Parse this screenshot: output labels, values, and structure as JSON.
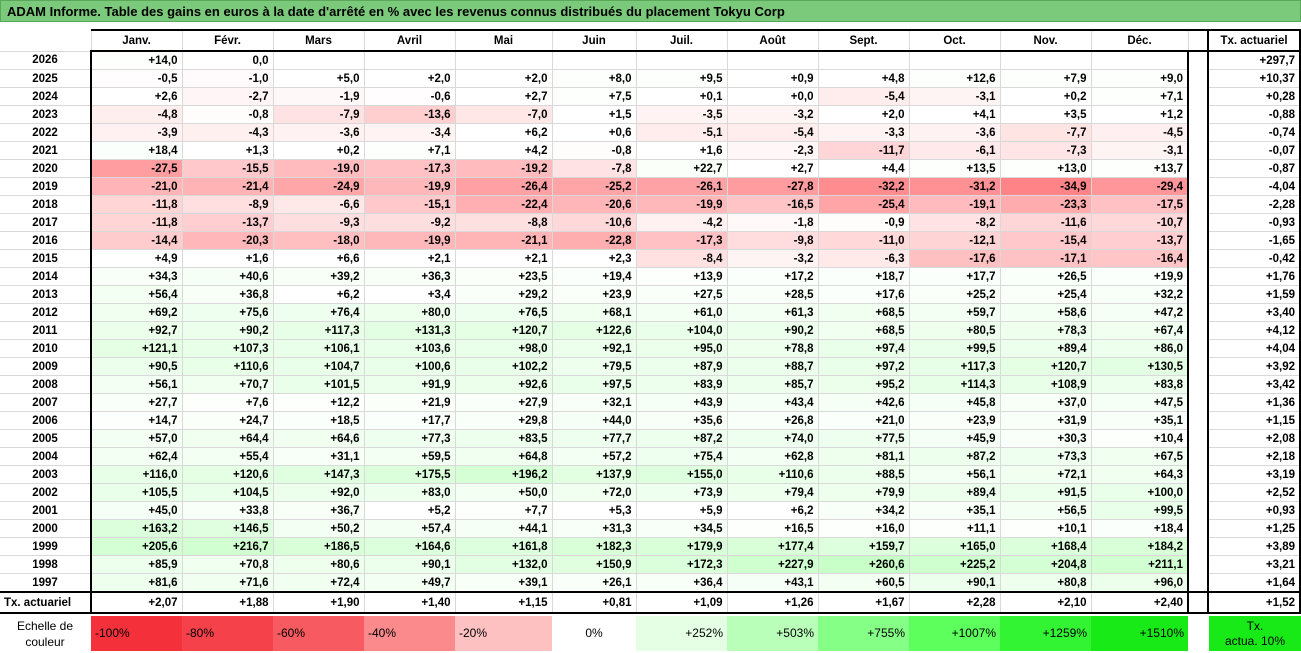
{
  "title": "ADAM Informe. Table des gains en euros à la date d'arrêté en % avec les revenus connus distribués du placement Tokyu Corp",
  "chart_data": {
    "type": "table",
    "columns": [
      "Janv.",
      "Févr.",
      "Mars",
      "Avril",
      "Mai",
      "Juin",
      "Juil.",
      "Août",
      "Sept.",
      "Oct.",
      "Nov.",
      "Déc."
    ],
    "tx_header": "Tx. actuariel",
    "rows": [
      {
        "year": "2026",
        "values": [
          "+14,0",
          "0,0",
          "",
          "",
          "",
          "",
          "",
          "",
          "",
          "",
          "",
          ""
        ],
        "tx": "+297,7"
      },
      {
        "year": "2025",
        "values": [
          "-0,5",
          "-1,0",
          "+5,0",
          "+2,0",
          "+2,0",
          "+8,0",
          "+9,5",
          "+0,9",
          "+4,8",
          "+12,6",
          "+7,9",
          "+9,0"
        ],
        "tx": "+10,37"
      },
      {
        "year": "2024",
        "values": [
          "+2,6",
          "-2,7",
          "-1,9",
          "-0,6",
          "+2,7",
          "+7,5",
          "+0,1",
          "+0,0",
          "-5,4",
          "-3,1",
          "+0,2",
          "+7,1"
        ],
        "tx": "+0,28"
      },
      {
        "year": "2023",
        "values": [
          "-4,8",
          "-0,8",
          "-7,9",
          "-13,6",
          "-7,0",
          "+1,5",
          "-3,5",
          "-3,2",
          "+2,0",
          "+4,1",
          "+3,5",
          "+1,2"
        ],
        "tx": "-0,88"
      },
      {
        "year": "2022",
        "values": [
          "-3,9",
          "-4,3",
          "-3,6",
          "-3,4",
          "+6,2",
          "+0,6",
          "-5,1",
          "-5,4",
          "-3,3",
          "-3,6",
          "-7,7",
          "-4,5"
        ],
        "tx": "-0,74"
      },
      {
        "year": "2021",
        "values": [
          "+18,4",
          "+1,3",
          "+0,2",
          "+7,1",
          "+4,2",
          "-0,8",
          "+1,6",
          "-2,3",
          "-11,7",
          "-6,1",
          "-7,3",
          "-3,1"
        ],
        "tx": "-0,07"
      },
      {
        "year": "2020",
        "values": [
          "-27,5",
          "-15,5",
          "-19,0",
          "-17,3",
          "-19,2",
          "-7,8",
          "+22,7",
          "+2,7",
          "+4,4",
          "+13,5",
          "+13,0",
          "+13,7"
        ],
        "tx": "-0,87"
      },
      {
        "year": "2019",
        "values": [
          "-21,0",
          "-21,4",
          "-24,9",
          "-19,9",
          "-26,4",
          "-25,2",
          "-26,1",
          "-27,8",
          "-32,2",
          "-31,2",
          "-34,9",
          "-29,4"
        ],
        "tx": "-4,04"
      },
      {
        "year": "2018",
        "values": [
          "-11,8",
          "-8,9",
          "-6,6",
          "-15,1",
          "-22,4",
          "-20,6",
          "-19,9",
          "-16,5",
          "-25,4",
          "-19,1",
          "-23,3",
          "-17,5"
        ],
        "tx": "-2,28"
      },
      {
        "year": "2017",
        "values": [
          "-11,8",
          "-13,7",
          "-9,3",
          "-9,2",
          "-8,8",
          "-10,6",
          "-4,2",
          "-1,8",
          "-0,9",
          "-8,2",
          "-11,6",
          "-10,7"
        ],
        "tx": "-0,93"
      },
      {
        "year": "2016",
        "values": [
          "-14,4",
          "-20,3",
          "-18,0",
          "-19,9",
          "-21,1",
          "-22,8",
          "-17,3",
          "-9,8",
          "-11,0",
          "-12,1",
          "-15,4",
          "-13,7"
        ],
        "tx": "-1,65"
      },
      {
        "year": "2015",
        "values": [
          "+4,9",
          "+1,6",
          "+6,6",
          "+2,1",
          "+2,1",
          "+2,3",
          "-8,4",
          "-3,2",
          "-6,3",
          "-17,6",
          "-17,1",
          "-16,4"
        ],
        "tx": "-0,42"
      },
      {
        "year": "2014",
        "values": [
          "+34,3",
          "+40,6",
          "+39,2",
          "+36,3",
          "+23,5",
          "+19,4",
          "+13,9",
          "+17,2",
          "+18,7",
          "+17,7",
          "+26,5",
          "+19,9"
        ],
        "tx": "+1,76"
      },
      {
        "year": "2013",
        "values": [
          "+56,4",
          "+36,8",
          "+6,2",
          "+3,4",
          "+29,2",
          "+23,9",
          "+27,5",
          "+28,5",
          "+17,6",
          "+25,2",
          "+25,4",
          "+32,2"
        ],
        "tx": "+1,59"
      },
      {
        "year": "2012",
        "values": [
          "+69,2",
          "+75,6",
          "+76,4",
          "+80,0",
          "+76,5",
          "+68,1",
          "+61,0",
          "+61,3",
          "+68,5",
          "+59,7",
          "+58,6",
          "+47,2"
        ],
        "tx": "+3,40"
      },
      {
        "year": "2011",
        "values": [
          "+92,7",
          "+90,2",
          "+117,3",
          "+131,3",
          "+120,7",
          "+122,6",
          "+104,0",
          "+90,2",
          "+68,5",
          "+80,5",
          "+78,3",
          "+67,4"
        ],
        "tx": "+4,12"
      },
      {
        "year": "2010",
        "values": [
          "+121,1",
          "+107,3",
          "+106,1",
          "+103,6",
          "+98,0",
          "+92,1",
          "+95,0",
          "+78,8",
          "+97,4",
          "+99,5",
          "+89,4",
          "+86,0"
        ],
        "tx": "+4,04"
      },
      {
        "year": "2009",
        "values": [
          "+90,5",
          "+110,6",
          "+104,7",
          "+100,6",
          "+102,2",
          "+79,5",
          "+87,9",
          "+88,7",
          "+97,2",
          "+117,3",
          "+120,7",
          "+130,5"
        ],
        "tx": "+3,92"
      },
      {
        "year": "2008",
        "values": [
          "+56,1",
          "+70,7",
          "+101,5",
          "+91,9",
          "+92,6",
          "+97,5",
          "+83,9",
          "+85,7",
          "+95,2",
          "+114,3",
          "+108,9",
          "+83,8"
        ],
        "tx": "+3,42"
      },
      {
        "year": "2007",
        "values": [
          "+27,7",
          "+7,6",
          "+12,2",
          "+21,9",
          "+27,9",
          "+32,1",
          "+43,9",
          "+43,4",
          "+42,6",
          "+45,8",
          "+37,0",
          "+47,5"
        ],
        "tx": "+1,36"
      },
      {
        "year": "2006",
        "values": [
          "+14,7",
          "+24,7",
          "+18,5",
          "+17,7",
          "+29,8",
          "+44,0",
          "+35,6",
          "+26,8",
          "+21,0",
          "+23,9",
          "+31,9",
          "+35,1"
        ],
        "tx": "+1,15"
      },
      {
        "year": "2005",
        "values": [
          "+57,0",
          "+64,4",
          "+64,6",
          "+77,3",
          "+83,5",
          "+77,7",
          "+87,2",
          "+74,0",
          "+77,5",
          "+45,9",
          "+30,3",
          "+10,4"
        ],
        "tx": "+2,08"
      },
      {
        "year": "2004",
        "values": [
          "+62,4",
          "+55,4",
          "+31,1",
          "+59,5",
          "+64,8",
          "+57,2",
          "+75,4",
          "+62,8",
          "+81,1",
          "+87,2",
          "+73,3",
          "+67,5"
        ],
        "tx": "+2,18"
      },
      {
        "year": "2003",
        "values": [
          "+116,0",
          "+120,6",
          "+147,3",
          "+175,5",
          "+196,2",
          "+137,9",
          "+155,0",
          "+110,6",
          "+88,5",
          "+56,1",
          "+72,1",
          "+64,3"
        ],
        "tx": "+3,19"
      },
      {
        "year": "2002",
        "values": [
          "+105,5",
          "+104,5",
          "+92,0",
          "+83,0",
          "+50,0",
          "+72,0",
          "+73,9",
          "+79,4",
          "+79,9",
          "+89,4",
          "+91,5",
          "+100,0"
        ],
        "tx": "+2,52"
      },
      {
        "year": "2001",
        "values": [
          "+45,0",
          "+33,8",
          "+36,7",
          "+5,2",
          "+7,7",
          "+5,3",
          "+5,9",
          "+6,2",
          "+34,2",
          "+35,1",
          "+56,5",
          "+99,5"
        ],
        "tx": "+0,93"
      },
      {
        "year": "2000",
        "values": [
          "+163,2",
          "+146,5",
          "+50,2",
          "+57,4",
          "+44,1",
          "+31,3",
          "+34,5",
          "+16,5",
          "+16,0",
          "+11,1",
          "+10,1",
          "+18,4"
        ],
        "tx": "+1,25"
      },
      {
        "year": "1999",
        "values": [
          "+205,6",
          "+216,7",
          "+186,5",
          "+164,6",
          "+161,8",
          "+182,3",
          "+179,9",
          "+177,4",
          "+159,7",
          "+165,0",
          "+168,4",
          "+184,2"
        ],
        "tx": "+3,89"
      },
      {
        "year": "1998",
        "values": [
          "+85,9",
          "+70,8",
          "+80,6",
          "+90,1",
          "+132,0",
          "+150,9",
          "+172,3",
          "+227,9",
          "+260,6",
          "+225,2",
          "+204,8",
          "+211,1"
        ],
        "tx": "+3,21"
      },
      {
        "year": "1997",
        "values": [
          "+81,6",
          "+71,6",
          "+72,4",
          "+49,7",
          "+39,1",
          "+26,1",
          "+36,4",
          "+43,1",
          "+60,5",
          "+90,1",
          "+80,8",
          "+96,0"
        ],
        "tx": "+1,64"
      }
    ],
    "avg_row": {
      "label": "Tx. actuariel",
      "values": [
        "+2,07",
        "+1,88",
        "+1,90",
        "+1,40",
        "+1,15",
        "+0,81",
        "+1,09",
        "+1,26",
        "+1,67",
        "+2,28",
        "+2,10",
        "+2,40"
      ],
      "tx": "+1,52"
    },
    "legend": {
      "label_line1": "Echelle de",
      "label_line2": "couleur",
      "cells": [
        {
          "text": "-100%",
          "color": "#f4313a"
        },
        {
          "text": "-80%",
          "color": "#f54149"
        },
        {
          "text": "-60%",
          "color": "#f75a60"
        },
        {
          "text": "-40%",
          "color": "#fa8a8c"
        },
        {
          "text": "-20%",
          "color": "#fdc1c2"
        },
        {
          "text": "0%",
          "color": "#ffffff"
        },
        {
          "text": "+252%",
          "color": "#e5ffe5"
        },
        {
          "text": "+503%",
          "color": "#b9ffb9"
        },
        {
          "text": "+755%",
          "color": "#86ff86"
        },
        {
          "text": "+1007%",
          "color": "#5cff5c"
        },
        {
          "text": "+1259%",
          "color": "#33f433"
        },
        {
          "text": "+1510%",
          "color": "#18ea18"
        }
      ],
      "tx_line1": "Tx.",
      "tx_line2": "actua. 10%",
      "tx_color": "#18ea18"
    }
  }
}
